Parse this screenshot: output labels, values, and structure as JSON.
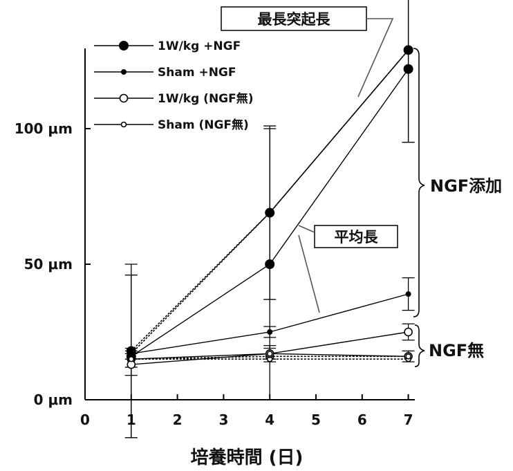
{
  "chart_data": {
    "type": "line",
    "title": "",
    "xlabel": "培養時間 (日)",
    "ylabel": "",
    "xlim": [
      0,
      7
    ],
    "ylim": [
      0,
      130
    ],
    "x_ticks": [
      "0",
      "1",
      "2",
      "3",
      "4",
      "5",
      "6",
      "7"
    ],
    "y_ticks": [
      {
        "value": 0,
        "label": "0 μm"
      },
      {
        "value": 50,
        "label": "50 μm"
      },
      {
        "value": 100,
        "label": "100 μm"
      }
    ],
    "grid": false,
    "legend_position": "top-left",
    "x": [
      1,
      4,
      7
    ],
    "series": [
      {
        "name": "1W/kg +NGF",
        "group": "最長突起長",
        "marker": "filled-large",
        "dash": "dotted",
        "values": [
          18,
          69,
          129
        ],
        "errors": [
          32,
          32,
          34
        ],
        "color": "#000000"
      },
      {
        "name": "Sham +NGF",
        "group": "最長突起長",
        "marker": "filled-small",
        "dash": "dotted",
        "values": [
          17,
          69,
          129
        ],
        "errors": [
          null,
          null,
          null
        ],
        "color": "#000000"
      },
      {
        "name": "1W/kg (NGF無)",
        "group": "最長突起長",
        "marker": "open-large",
        "dash": "dotted",
        "values": [
          15,
          16,
          16
        ],
        "errors": [
          null,
          null,
          null
        ],
        "color": "#000000"
      },
      {
        "name": "Sham (NGF無)",
        "group": "最長突起長",
        "marker": "open-small",
        "dash": "dotted",
        "values": [
          15,
          15,
          15
        ],
        "errors": [
          null,
          null,
          null
        ],
        "color": "#000000"
      },
      {
        "name": "1W/kg +NGF",
        "group": "平均長",
        "marker": "filled-large",
        "dash": "solid",
        "values": [
          16,
          50,
          122
        ],
        "errors": [
          30,
          50,
          27
        ],
        "color": "#000000"
      },
      {
        "name": "Sham +NGF",
        "group": "平均長",
        "marker": "filled-small",
        "dash": "solid",
        "values": [
          17,
          25,
          39
        ],
        "errors": [
          2,
          2,
          6
        ],
        "color": "#000000"
      },
      {
        "name": "1W/kg (NGF無)",
        "group": "平均長",
        "marker": "open-large",
        "dash": "solid",
        "values": [
          13,
          17,
          25
        ],
        "errors": [
          4,
          3,
          3
        ],
        "color": "#000000"
      },
      {
        "name": "Sham (NGF無)",
        "group": "平均長",
        "marker": "open-small",
        "dash": "solid",
        "values": [
          15,
          17,
          16
        ],
        "errors": [
          3,
          2,
          2
        ],
        "color": "#000000"
      }
    ],
    "annotations": [
      {
        "text": "最長突起長",
        "style": "boxed"
      },
      {
        "text": "平均長",
        "style": "boxed"
      },
      {
        "text": "NGF添加",
        "style": "brace"
      },
      {
        "text": "NGF無",
        "style": "brace"
      }
    ]
  }
}
